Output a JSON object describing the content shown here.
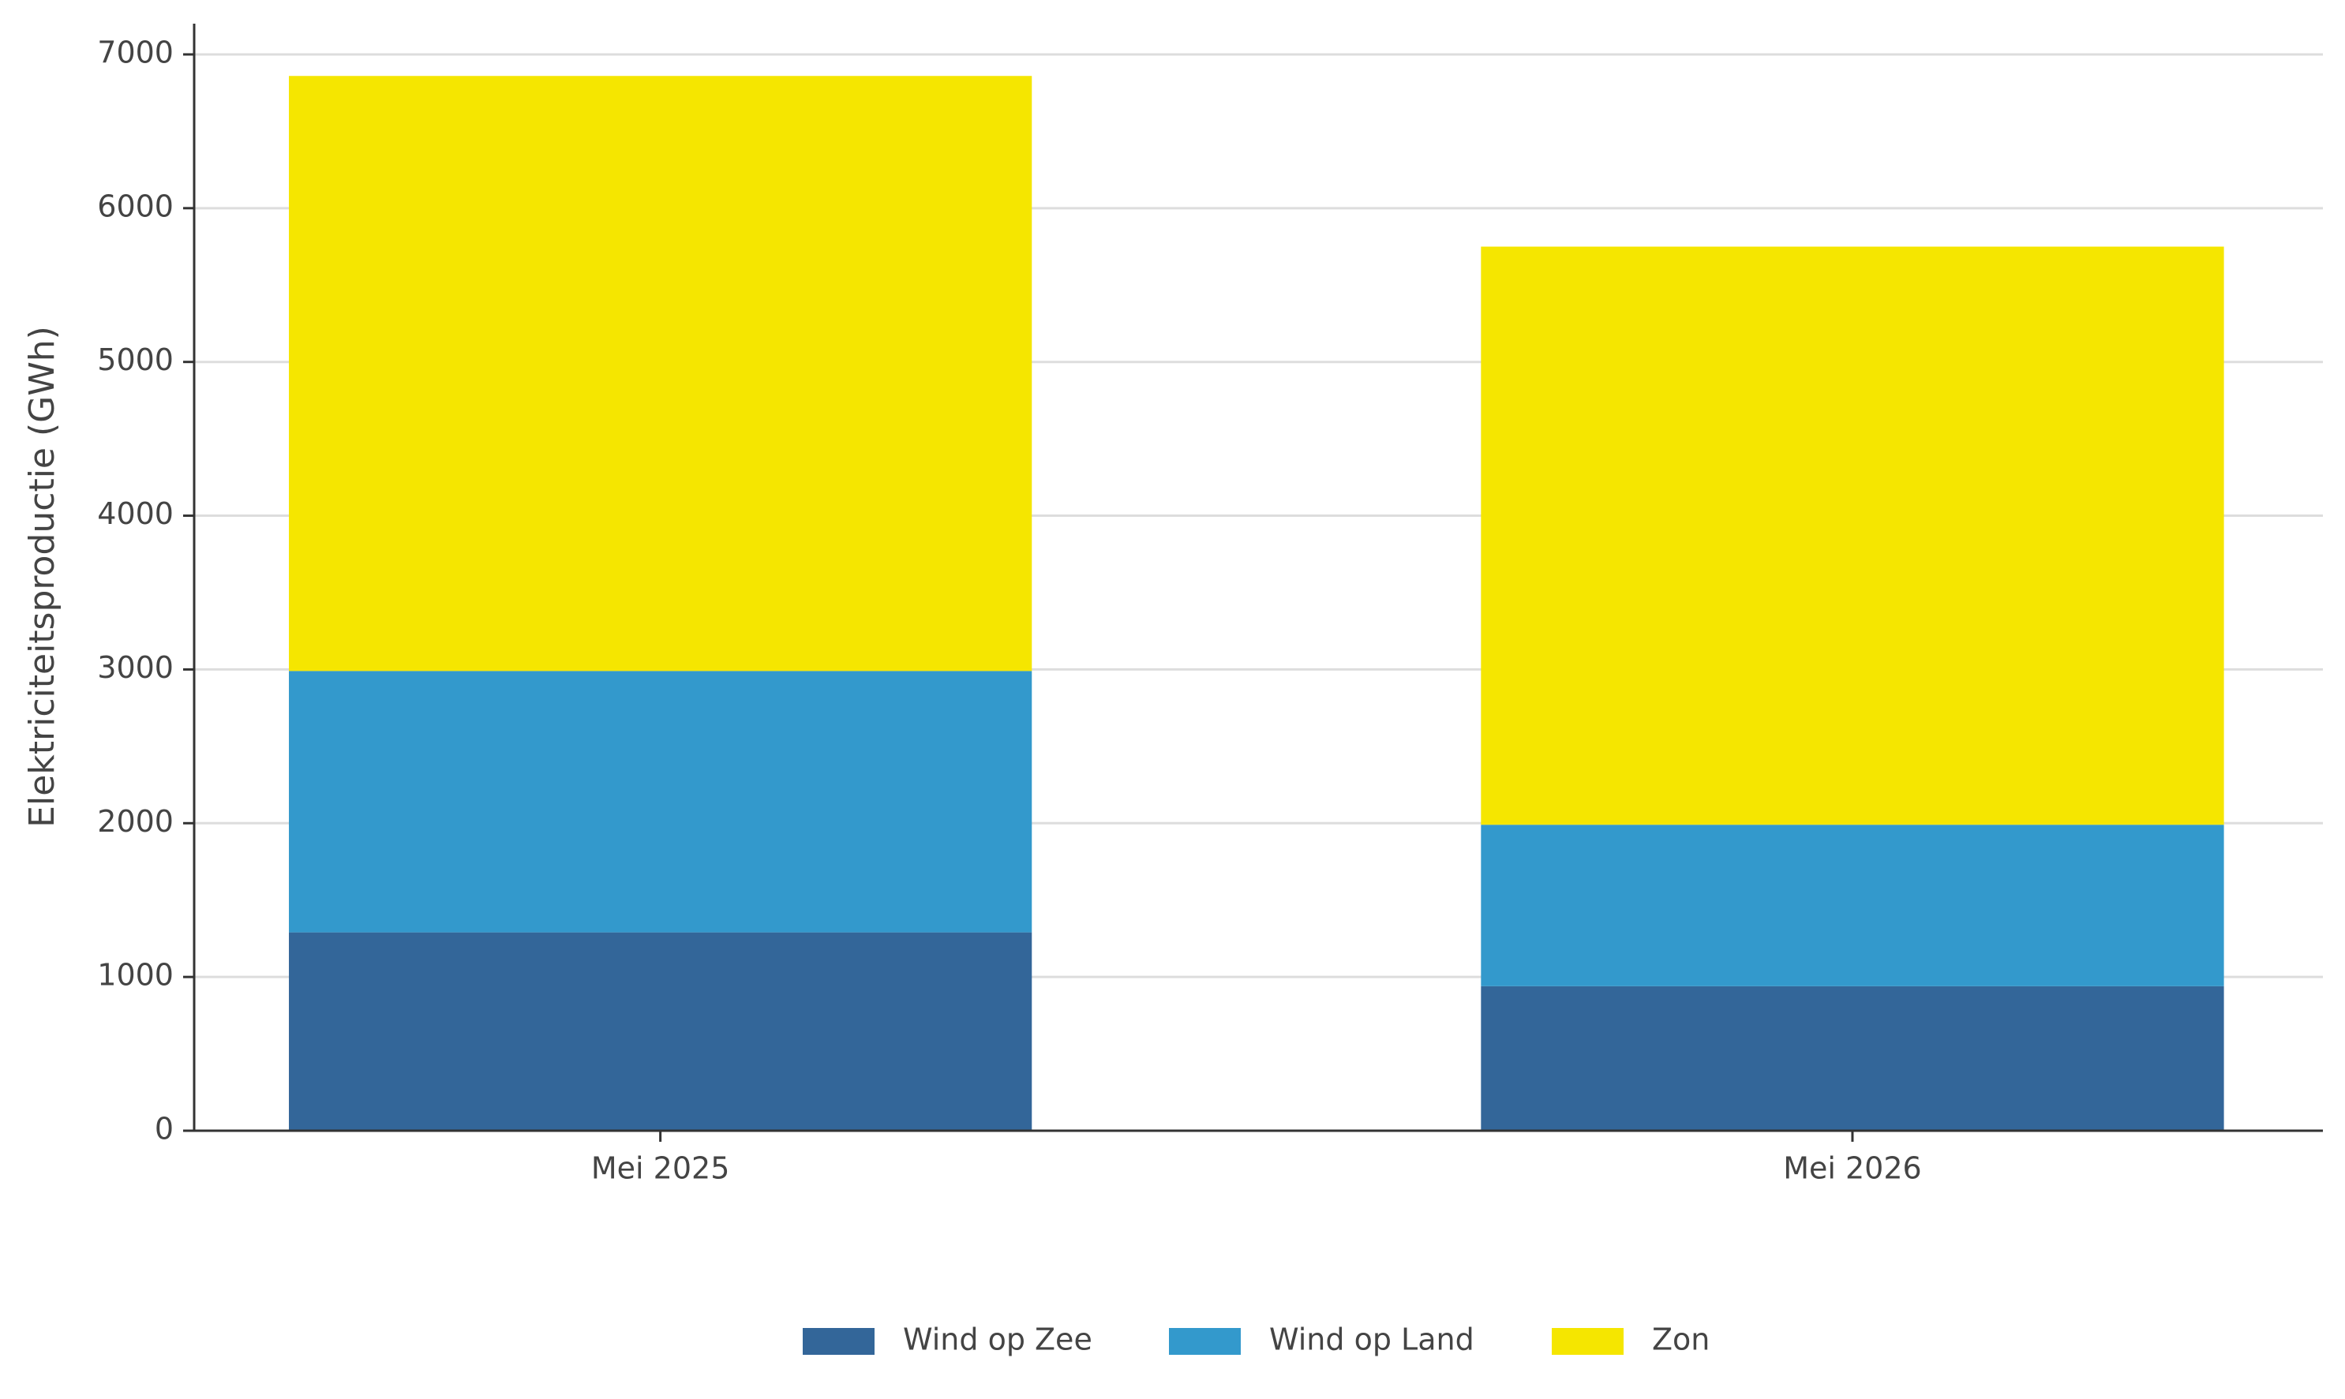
{
  "chart_data": {
    "type": "stacked_bar",
    "y_label": "Elektriciteitsproductie (GWh)",
    "categories": [
      "Mei 2025",
      "Mei 2026"
    ],
    "series": [
      {
        "name": "Wind op Zee",
        "color": "#336699",
        "values": [
          1290,
          940
        ]
      },
      {
        "name": "Wind op Land",
        "color": "#3399cc",
        "values": [
          1700,
          1050
        ]
      },
      {
        "name": "Zon",
        "color": "#f5e600",
        "values": [
          3870,
          3760
        ]
      }
    ],
    "ylim": [
      0,
      7200
    ],
    "yticks": [
      0,
      1000,
      2000,
      3000,
      4000,
      5000,
      6000,
      7000
    ],
    "grid": true,
    "legend": "bottom"
  }
}
